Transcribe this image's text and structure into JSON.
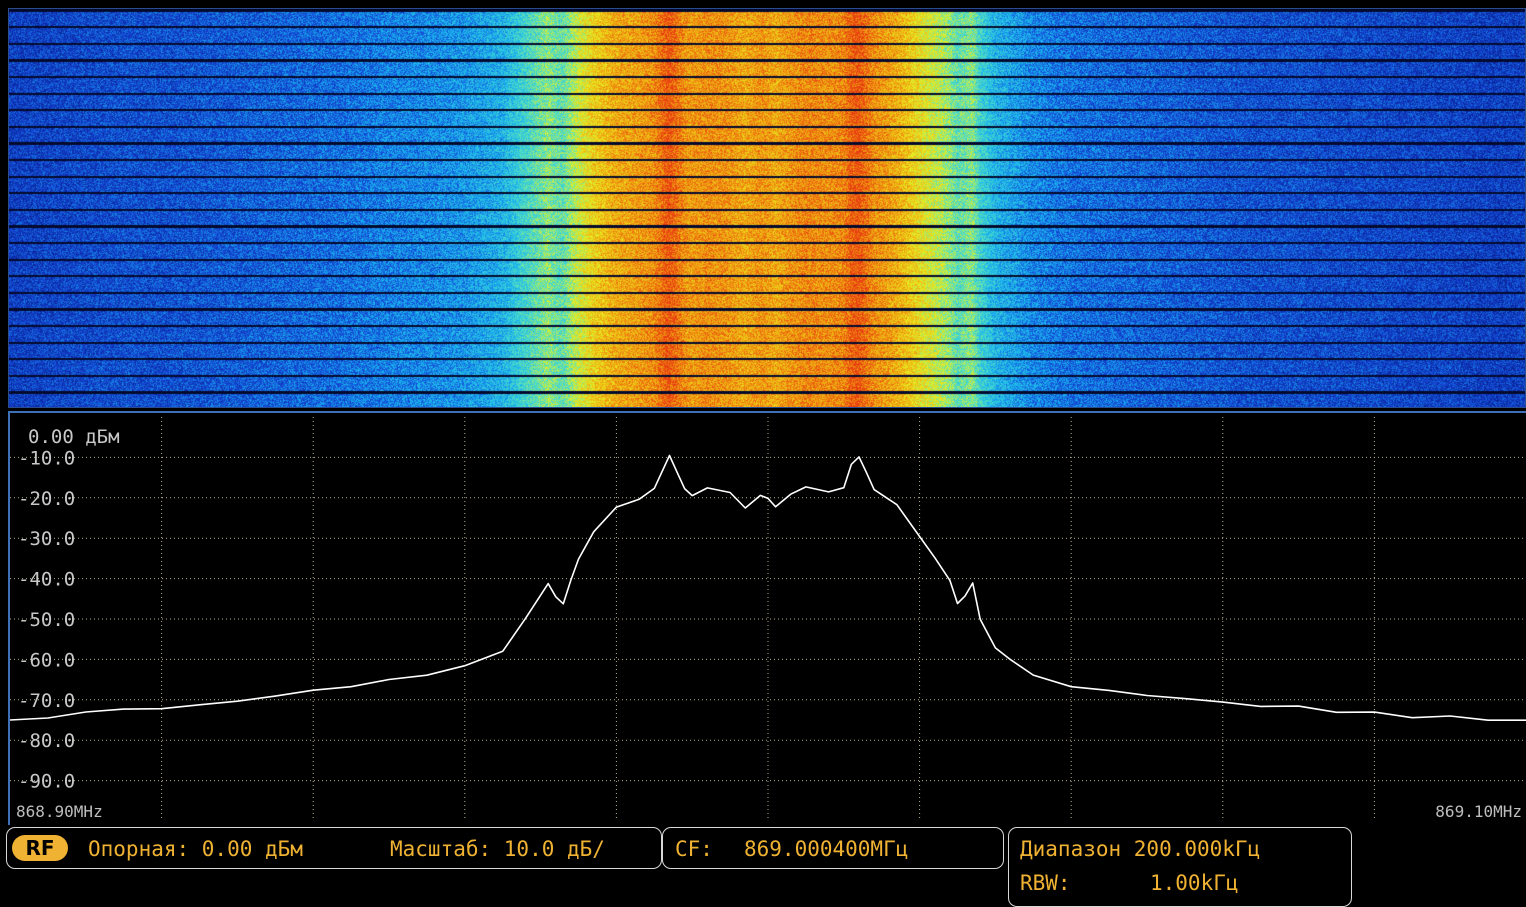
{
  "colors": {
    "background": "#000000",
    "trace": "#ffffff",
    "grid": "#b8b08a",
    "status_text": "#f0b232",
    "panel_border": "#3f6fb7"
  },
  "waterfall": {
    "colormap": [
      "#061a86",
      "#1446d6",
      "#18b4f0",
      "#55e0c0",
      "#e8f020",
      "#f0a010",
      "#e83a10"
    ]
  },
  "spectrum": {
    "ref_label": "0.00 дБм",
    "y_ticks": [
      "-10.0",
      "-20.0",
      "-30.0",
      "-40.0",
      "-50.0",
      "-60.0",
      "-70.0",
      "-80.0",
      "-90.0"
    ],
    "freq_start": "868.90MHz",
    "freq_stop": "869.10MHz"
  },
  "chart_data": {
    "type": "line",
    "title": "",
    "xlabel": "",
    "ylabel": "",
    "xlim": [
      868.9,
      869.1
    ],
    "ylim": [
      -100,
      0
    ],
    "grid": true,
    "series": [
      {
        "x": [
          868.9,
          868.905,
          868.91,
          868.915,
          868.92,
          868.925,
          868.93,
          868.935,
          868.94,
          868.945,
          868.95,
          868.955,
          868.96,
          868.965,
          868.968,
          868.971,
          868.972,
          868.973,
          868.974,
          868.975,
          868.977,
          868.98,
          868.983,
          868.985,
          868.987,
          868.988,
          868.989,
          868.99,
          868.992,
          868.995,
          868.997,
          868.999,
          869.0,
          869.001,
          869.003,
          869.005,
          869.008,
          869.01,
          869.011,
          869.012,
          869.013,
          869.014,
          869.017,
          869.02,
          869.022,
          869.024,
          869.025,
          869.026,
          869.027,
          869.028,
          869.03,
          869.032,
          869.035,
          869.04,
          869.045,
          869.05,
          869.055,
          869.06,
          869.065,
          869.07,
          869.075,
          869.08,
          869.085,
          869.09,
          869.095,
          869.1
        ],
        "values": [
          -75,
          -74,
          -73,
          -72,
          -72,
          -71,
          -70,
          -69,
          -68,
          -67,
          -65,
          -64,
          -62,
          -58,
          -50,
          -41,
          -44,
          -46,
          -40,
          -35,
          -28,
          -22,
          -20,
          -18,
          -10,
          -14,
          -18,
          -20,
          -18,
          -19,
          -22,
          -19,
          -20,
          -22,
          -19,
          -17,
          -18,
          -17,
          -12,
          -10,
          -14,
          -18,
          -22,
          -30,
          -35,
          -40,
          -46,
          -44,
          -41,
          -50,
          -57,
          -60,
          -64,
          -67,
          -68,
          -69,
          -70,
          -71,
          -72,
          -72,
          -73,
          -73,
          -74,
          -74,
          -75,
          -75
        ]
      }
    ]
  },
  "status": {
    "rf_badge": "RF",
    "reference": "Опорная: 0.00 дБм",
    "scale": "Масштаб: 10.0 дБ/",
    "cf_label": "CF:",
    "cf_value": "869.000400МГц",
    "span": "Диапазон 200.000kГц",
    "rbw_label": "RBW:",
    "rbw_value": "1.00kГц"
  }
}
